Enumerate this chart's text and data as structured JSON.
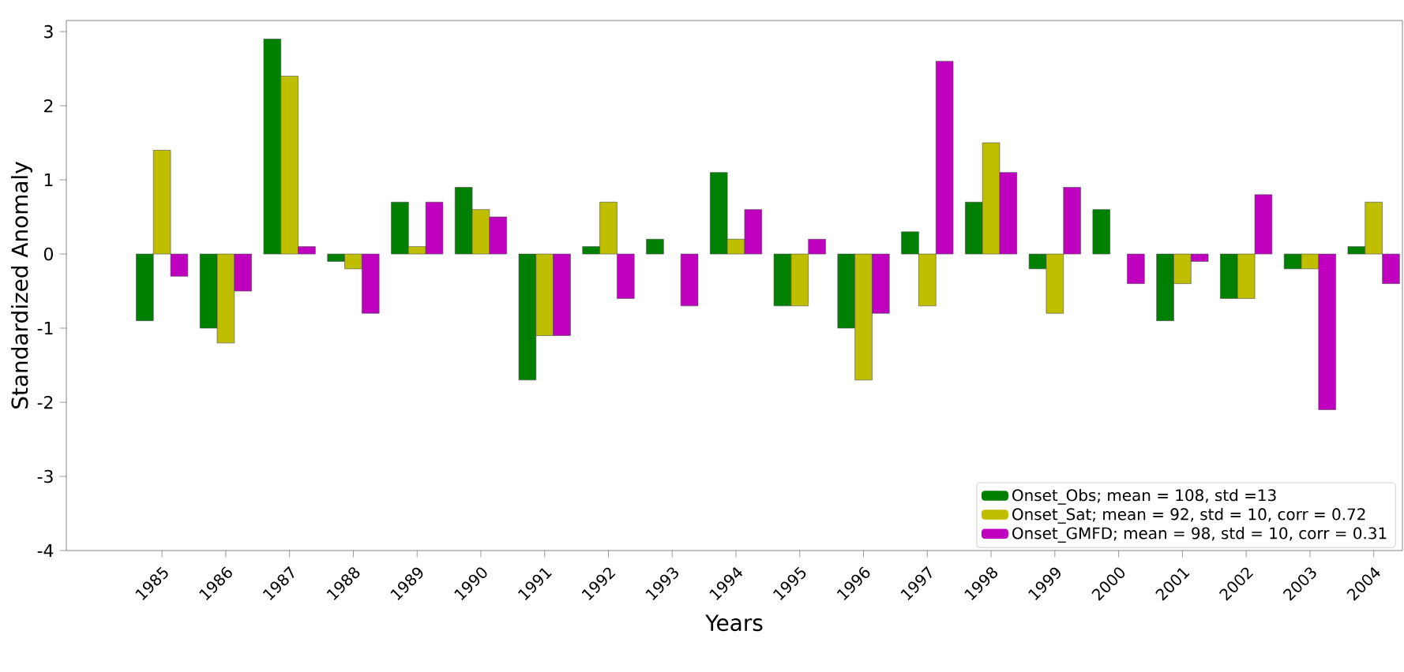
{
  "chart_data": {
    "type": "bar",
    "xlabel": "Years",
    "ylabel": "Standardized Anomaly",
    "categories": [
      "1985",
      "1986",
      "1987",
      "1988",
      "1989",
      "1990",
      "1991",
      "1992",
      "1993",
      "1994",
      "1995",
      "1996",
      "1997",
      "1998",
      "1999",
      "2000",
      "2001",
      "2002",
      "2003",
      "2004"
    ],
    "series": [
      {
        "name": "Onset_Obs; mean = 108, std =13",
        "color": "#008000",
        "values": [
          -0.9,
          -1.0,
          2.9,
          -0.1,
          0.7,
          0.9,
          -1.7,
          0.1,
          0.2,
          1.1,
          -0.7,
          -1.0,
          0.3,
          0.7,
          -0.2,
          0.6,
          -0.9,
          -0.6,
          -0.2,
          0.1
        ]
      },
      {
        "name": "Onset_Sat; mean = 92, std = 10, corr = 0.72",
        "color": "#bfbf00",
        "values": [
          1.4,
          -1.2,
          2.4,
          -0.2,
          0.1,
          0.6,
          -1.1,
          0.7,
          null,
          0.2,
          -0.7,
          -1.7,
          -0.7,
          1.5,
          -0.8,
          null,
          -0.4,
          -0.6,
          -0.2,
          0.7
        ]
      },
      {
        "name": "Onset_GMFD; mean = 98, std = 10, corr = 0.31",
        "color": "#bf00bf",
        "values": [
          -0.3,
          -0.5,
          0.1,
          -0.8,
          0.7,
          0.5,
          -1.1,
          -0.6,
          -0.7,
          0.6,
          0.2,
          -0.8,
          2.6,
          1.1,
          0.9,
          -0.4,
          -0.1,
          0.8,
          -2.1,
          -0.4
        ]
      }
    ],
    "ylim": [
      -4,
      3.15
    ],
    "yticks": [
      -4,
      -3,
      -2,
      -1,
      0,
      1,
      2,
      3
    ],
    "grid": false,
    "legend": "bottom right"
  }
}
